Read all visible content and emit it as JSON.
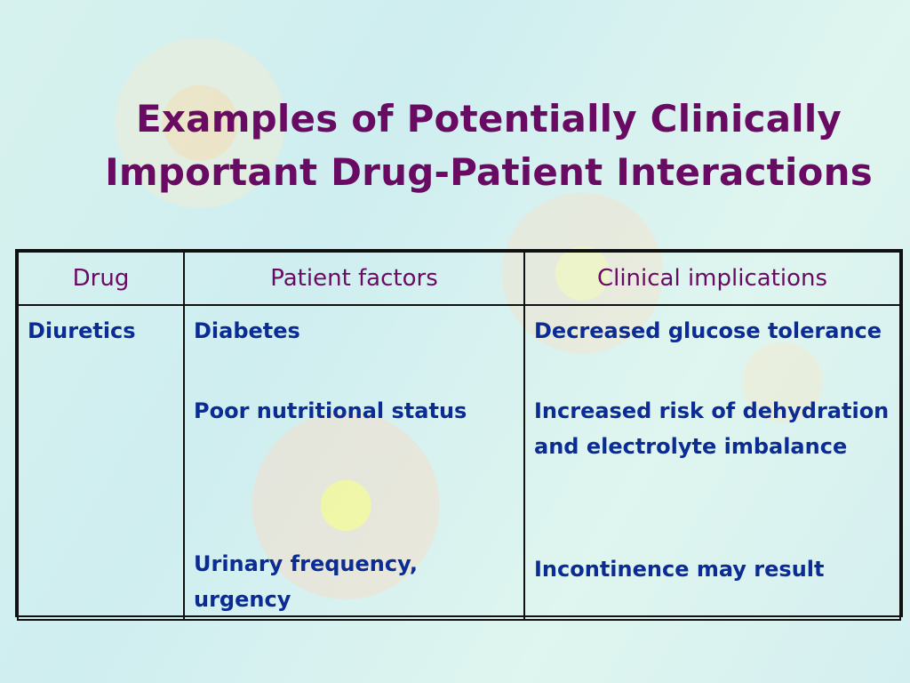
{
  "slide": {
    "title_lines": [
      "Examples of Potentially Clinically",
      "Important Drug-Patient Interactions"
    ],
    "table": {
      "headers": [
        "Drug",
        "Patient factors",
        "Clinical implications"
      ],
      "drug": "Diuretics",
      "patient_factors": [
        "Diabetes",
        "Poor nutritional status",
        "Urinary frequency, urgency"
      ],
      "clinical_implications": [
        "Decreased glucose tolerance",
        "Increased risk of dehydration and electrolyte imbalance",
        "Incontinence may result"
      ]
    }
  },
  "colors": {
    "title": "#6a0b63",
    "body_text": "#0b2c95",
    "table_border": "#111111",
    "background": "#d6f1ee"
  }
}
